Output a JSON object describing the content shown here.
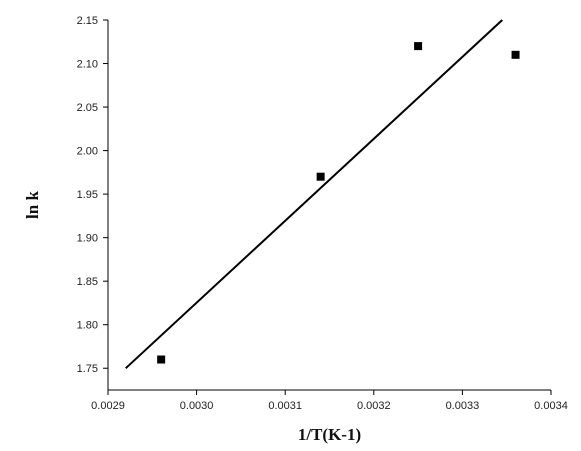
{
  "chart_data": {
    "type": "scatter",
    "xlabel": "1/T(K-1)",
    "ylabel": "ln k",
    "xlim": [
      0.0029,
      0.0034
    ],
    "ylim": [
      1.725,
      2.15
    ],
    "x_ticks": [
      "0.0029",
      "0.0030",
      "0.0031",
      "0.0032",
      "0.0033",
      "0.0034"
    ],
    "y_ticks": [
      "1.75",
      "1.80",
      "1.85",
      "1.90",
      "1.95",
      "2.00",
      "2.05",
      "2.10",
      "2.15"
    ],
    "grid": false,
    "legend": "none",
    "points": [
      {
        "x": 0.00296,
        "y": 1.76
      },
      {
        "x": 0.00314,
        "y": 1.97
      },
      {
        "x": 0.00325,
        "y": 2.12
      },
      {
        "x": 0.00336,
        "y": 2.11
      }
    ],
    "fit_line": {
      "x": [
        0.00292,
        0.003345
      ],
      "y": [
        1.75,
        2.15
      ]
    },
    "colors": {
      "axis": "#000000",
      "marker": "#000000",
      "line": "#000000"
    }
  }
}
